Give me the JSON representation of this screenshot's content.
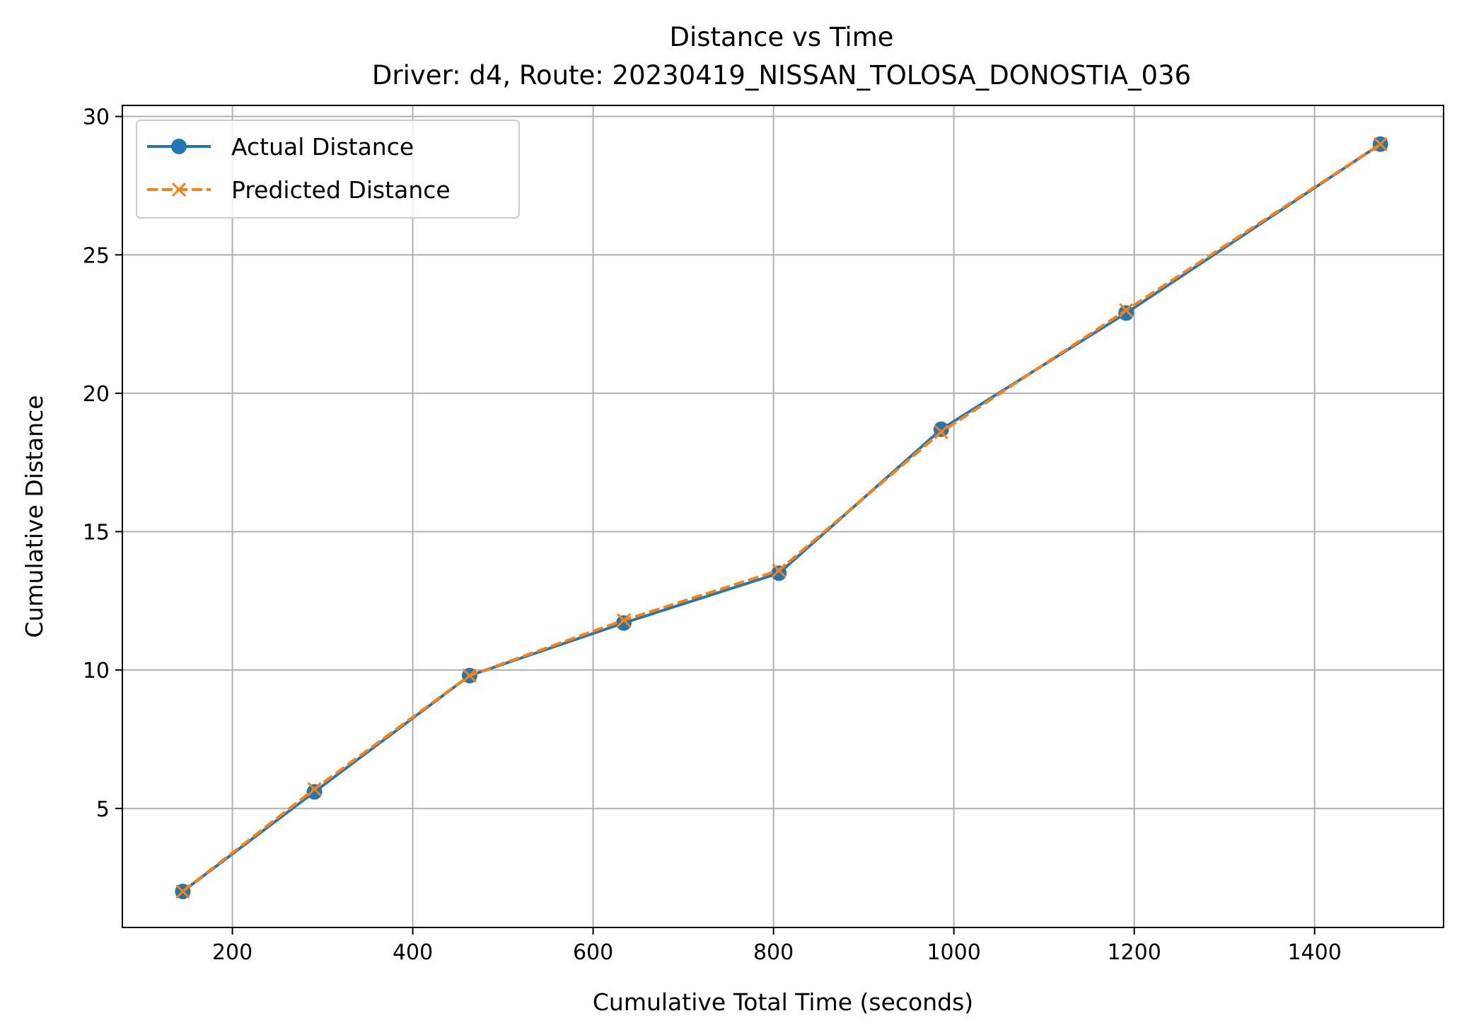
{
  "chart_data": {
    "type": "line",
    "title": "Distance vs Time",
    "subtitle": "Driver: d4, Route: 20230419_NISSAN_TOLOSA_DONOSTIA_036",
    "xlabel": "Cumulative Total Time (seconds)",
    "ylabel": "Cumulative Distance",
    "xlim": [
      78,
      1543
    ],
    "ylim": [
      0.7,
      30.4
    ],
    "xticks": [
      200,
      400,
      600,
      800,
      1000,
      1200,
      1400
    ],
    "yticks": [
      5,
      10,
      15,
      20,
      25,
      30
    ],
    "grid": true,
    "legend_position": "upper-left",
    "x": [
      145,
      291,
      463,
      634,
      806,
      986,
      1191,
      1473
    ],
    "series": [
      {
        "name": "Actual Distance",
        "color": "#1f77b4",
        "line_style": "solid",
        "marker": "circle",
        "values": [
          2.0,
          5.6,
          9.8,
          11.7,
          13.5,
          18.7,
          22.9,
          29.0
        ]
      },
      {
        "name": "Predicted Distance",
        "color": "#ff7f0e",
        "line_style": "dashed",
        "marker": "x",
        "values": [
          2.0,
          5.7,
          9.8,
          11.8,
          13.6,
          18.6,
          23.0,
          29.0
        ]
      }
    ]
  }
}
